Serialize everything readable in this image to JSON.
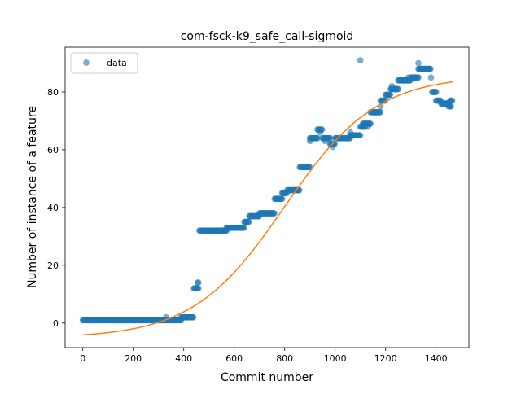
{
  "chart_data": {
    "type": "scatter",
    "title": "com-fsck-k9_safe_call-sigmoid",
    "xlabel": "Commit number",
    "ylabel": "Number of instance of a feature",
    "xlim": [
      -70,
      1530
    ],
    "ylim": [
      -8.5,
      95.5
    ],
    "xticks": [
      0,
      200,
      400,
      600,
      800,
      1000,
      1200,
      1400
    ],
    "yticks": [
      0,
      20,
      40,
      60,
      80
    ],
    "legend": {
      "position": "top-left",
      "entries": [
        "data"
      ]
    },
    "colors": {
      "data": "#1f77b4",
      "fit": "#ff7f0e"
    },
    "series": [
      {
        "name": "data",
        "kind": "scatter",
        "segments": [
          {
            "x0": 0,
            "x1": 390,
            "y": 1
          },
          {
            "x0": 330,
            "x1": 330,
            "y": 2
          },
          {
            "x0": 390,
            "x1": 440,
            "y": 2
          },
          {
            "x0": 440,
            "x1": 460,
            "y": 12
          },
          {
            "x0": 455,
            "x1": 460,
            "y": 14
          },
          {
            "x0": 462,
            "x1": 570,
            "y": 32
          },
          {
            "x0": 570,
            "x1": 600,
            "y": 33
          },
          {
            "x0": 600,
            "x1": 640,
            "y": 33
          },
          {
            "x0": 640,
            "x1": 660,
            "y": 35
          },
          {
            "x0": 660,
            "x1": 700,
            "y": 37
          },
          {
            "x0": 700,
            "x1": 720,
            "y": 38
          },
          {
            "x0": 720,
            "x1": 760,
            "y": 38
          },
          {
            "x0": 760,
            "x1": 790,
            "y": 43
          },
          {
            "x0": 790,
            "x1": 810,
            "y": 45
          },
          {
            "x0": 810,
            "x1": 840,
            "y": 46
          },
          {
            "x0": 840,
            "x1": 860,
            "y": 46
          },
          {
            "x0": 860,
            "x1": 900,
            "y": 54
          },
          {
            "x0": 900,
            "x1": 930,
            "y": 64
          },
          {
            "x0": 930,
            "x1": 950,
            "y": 67
          },
          {
            "x0": 950,
            "x1": 980,
            "y": 64
          },
          {
            "x0": 980,
            "x1": 1000,
            "y": 62
          },
          {
            "x0": 1000,
            "x1": 1020,
            "y": 64
          },
          {
            "x0": 1020,
            "x1": 1060,
            "y": 64
          },
          {
            "x0": 1060,
            "x1": 1100,
            "y": 65
          },
          {
            "x0": 1100,
            "x1": 1120,
            "y": 68
          },
          {
            "x0": 1110,
            "x1": 1140,
            "y": 69
          },
          {
            "x0": 1140,
            "x1": 1180,
            "y": 73
          },
          {
            "x0": 1180,
            "x1": 1200,
            "y": 77
          },
          {
            "x0": 1200,
            "x1": 1220,
            "y": 79
          },
          {
            "x0": 1220,
            "x1": 1250,
            "y": 81
          },
          {
            "x0": 1250,
            "x1": 1300,
            "y": 84
          },
          {
            "x0": 1300,
            "x1": 1330,
            "y": 85
          },
          {
            "x0": 1330,
            "x1": 1380,
            "y": 88
          },
          {
            "x0": 1385,
            "x1": 1400,
            "y": 80
          },
          {
            "x0": 1400,
            "x1": 1420,
            "y": 77
          },
          {
            "x0": 1420,
            "x1": 1450,
            "y": 76
          },
          {
            "x0": 1450,
            "x1": 1460,
            "y": 75
          },
          {
            "x0": 1455,
            "x1": 1465,
            "y": 77
          }
        ],
        "points": [
          [
            1100,
            91
          ],
          [
            1330,
            90
          ],
          [
            1380,
            85
          ],
          [
            1180,
            75
          ],
          [
            1060,
            66
          ],
          [
            900,
            63
          ],
          [
            990,
            61
          ],
          [
            960,
            63
          ],
          [
            940,
            66
          ],
          [
            1130,
            68
          ],
          [
            1225,
            82
          ],
          [
            1290,
            85
          ]
        ]
      },
      {
        "name": "",
        "kind": "line",
        "sigmoid": {
          "L": 91,
          "x0": 800,
          "k": 0.0055,
          "b": -5.2
        },
        "x_range": [
          0,
          1465
        ]
      }
    ]
  }
}
